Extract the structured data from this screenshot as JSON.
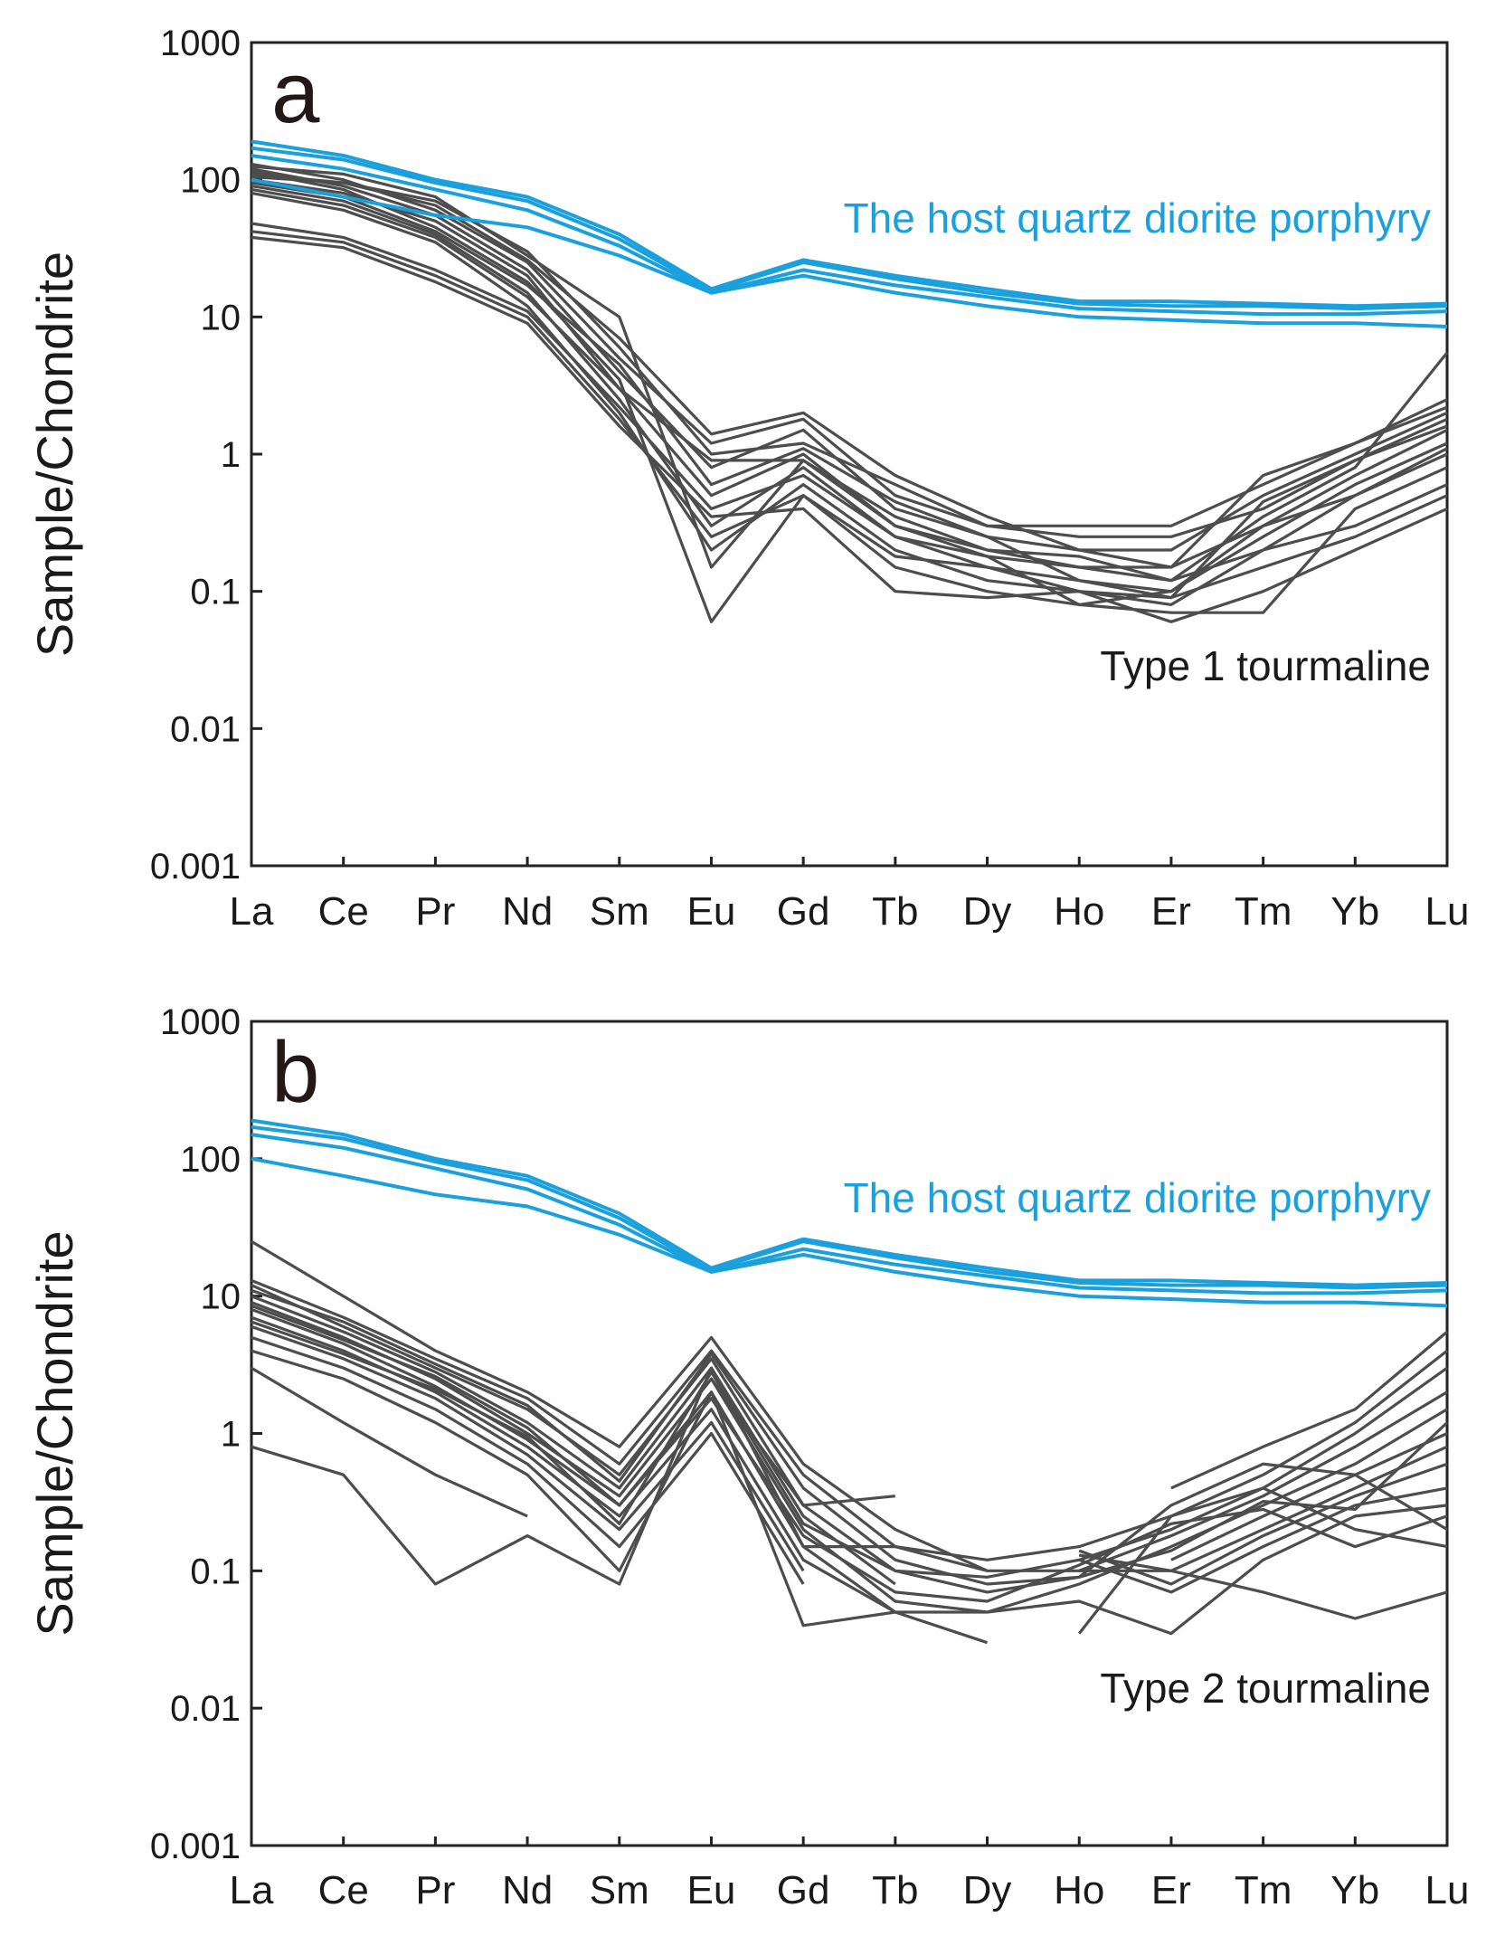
{
  "figure": {
    "colors": {
      "host": "#1aa0dc",
      "tourmaline": "#4d4d4d",
      "axis": "#222222",
      "background": "#ffffff"
    }
  },
  "chart_data": [
    {
      "type": "line",
      "panel": "a",
      "ylabel": "Sample/Chondrite",
      "yscale": "log",
      "ylim": [
        0.001,
        1000
      ],
      "yticks": [
        "1000",
        "100",
        "10",
        "1",
        "0.1",
        "0.01",
        "0.001"
      ],
      "categories": [
        "La",
        "Ce",
        "Pr",
        "Nd",
        "Sm",
        "Eu",
        "Gd",
        "Tb",
        "Dy",
        "Ho",
        "Er",
        "Tm",
        "Yb",
        "Lu"
      ],
      "annotations": {
        "host": "The host quartz diorite porphyry",
        "tourmaline": "Type 1 tourmaline"
      },
      "series": [
        {
          "name": "host-1",
          "group": "host",
          "values": [
            190,
            150,
            100,
            75,
            40,
            16,
            26,
            20,
            16,
            13,
            13,
            12.5,
            12,
            12.5
          ]
        },
        {
          "name": "host-2",
          "group": "host",
          "values": [
            170,
            140,
            95,
            70,
            37,
            15.5,
            25,
            19,
            15,
            12.5,
            12,
            12,
            11.5,
            12
          ]
        },
        {
          "name": "host-3",
          "group": "host",
          "values": [
            150,
            120,
            85,
            60,
            33,
            15,
            22,
            17,
            14,
            11.5,
            11,
            10.5,
            10.5,
            11
          ]
        },
        {
          "name": "host-4",
          "group": "host",
          "values": [
            100,
            75,
            55,
            45,
            28,
            15,
            20,
            15,
            12,
            10,
            9.5,
            9,
            9,
            8.5
          ]
        },
        {
          "name": "t1-1",
          "group": "tourmaline",
          "values": [
            130,
            100,
            60,
            25,
            5,
            1.2,
            1.8,
            0.5,
            0.3,
            0.3,
            0.3,
            0.6,
            1.2,
            2.5
          ]
        },
        {
          "name": "t1-2",
          "group": "tourmaline",
          "values": [
            120,
            90,
            55,
            22,
            4,
            0.8,
            1.5,
            0.4,
            0.25,
            0.2,
            0.2,
            0.5,
            1.0,
            2.0
          ]
        },
        {
          "name": "t1-3",
          "group": "tourmaline",
          "values": [
            110,
            95,
            70,
            30,
            6,
            1.0,
            1.2,
            0.6,
            0.3,
            0.25,
            0.25,
            0.4,
            0.9,
            1.8
          ]
        },
        {
          "name": "t1-4",
          "group": "tourmaline",
          "values": [
            100,
            80,
            50,
            20,
            3,
            0.5,
            1.0,
            0.3,
            0.2,
            0.15,
            0.15,
            0.3,
            0.7,
            1.5
          ]
        },
        {
          "name": "t1-5",
          "group": "tourmaline",
          "values": [
            90,
            70,
            40,
            15,
            2.5,
            0.3,
            0.8,
            0.25,
            0.15,
            0.12,
            0.1,
            0.25,
            0.6,
            1.2
          ]
        },
        {
          "name": "t1-6",
          "group": "tourmaline",
          "values": [
            80,
            60,
            35,
            12,
            2.0,
            0.2,
            0.6,
            0.2,
            0.12,
            0.1,
            0.08,
            0.2,
            0.5,
            1.0
          ]
        },
        {
          "name": "t1-7",
          "group": "tourmaline",
          "values": [
            125,
            110,
            75,
            28,
            10,
            0.15,
            0.9,
            0.35,
            0.2,
            0.18,
            0.12,
            0.35,
            0.8,
            5.5
          ]
        },
        {
          "name": "t1-8",
          "group": "tourmaline",
          "values": [
            115,
            85,
            45,
            18,
            3.5,
            0.06,
            0.5,
            0.15,
            0.1,
            0.08,
            0.07,
            0.07,
            0.4,
            0.8
          ]
        },
        {
          "name": "t1-9",
          "group": "tourmaline",
          "values": [
            48,
            38,
            22,
            11,
            2.2,
            0.4,
            0.7,
            0.25,
            0.18,
            0.15,
            0.12,
            0.2,
            0.3,
            0.6
          ]
        },
        {
          "name": "t1-10",
          "group": "tourmaline",
          "values": [
            42,
            35,
            20,
            10,
            1.8,
            0.25,
            0.5,
            0.18,
            0.15,
            0.1,
            0.09,
            0.15,
            0.25,
            0.5
          ]
        },
        {
          "name": "t1-11",
          "group": "tourmaline",
          "values": [
            38,
            32,
            18,
            9,
            1.6,
            0.35,
            0.4,
            0.1,
            0.09,
            0.1,
            0.06,
            0.1,
            0.2,
            0.4
          ]
        },
        {
          "name": "t1-12",
          "group": "tourmaline",
          "values": [
            105,
            95,
            65,
            26,
            7,
            1.4,
            2.0,
            0.7,
            0.35,
            0.2,
            0.15,
            0.7,
            1.2,
            2.2
          ]
        },
        {
          "name": "t1-13",
          "group": "tourmaline",
          "values": [
            95,
            75,
            42,
            17,
            4.5,
            0.6,
            1.1,
            0.45,
            0.25,
            0.12,
            0.09,
            0.45,
            0.9,
            1.6
          ]
        },
        {
          "name": "t1-14",
          "group": "tourmaline",
          "values": [
            85,
            65,
            38,
            14,
            3.0,
            0.9,
            0.9,
            0.3,
            0.18,
            0.08,
            0.1,
            0.3,
            0.5,
            1.1
          ]
        }
      ]
    },
    {
      "type": "line",
      "panel": "b",
      "ylabel": "Sample/Chondrite",
      "yscale": "log",
      "ylim": [
        0.001,
        1000
      ],
      "yticks": [
        "1000",
        "100",
        "10",
        "1",
        "0.1",
        "0.01",
        "0.001"
      ],
      "categories": [
        "La",
        "Ce",
        "Pr",
        "Nd",
        "Sm",
        "Eu",
        "Gd",
        "Tb",
        "Dy",
        "Ho",
        "Er",
        "Tm",
        "Yb",
        "Lu"
      ],
      "annotations": {
        "host": "The host quartz diorite porphyry",
        "tourmaline": "Type 2 tourmaline"
      },
      "series": [
        {
          "name": "host-1",
          "group": "host",
          "values": [
            190,
            150,
            100,
            75,
            40,
            16,
            26,
            20,
            16,
            13,
            13,
            12.5,
            12,
            12.5
          ]
        },
        {
          "name": "host-2",
          "group": "host",
          "values": [
            170,
            140,
            95,
            70,
            37,
            15.5,
            25,
            19,
            15,
            12.5,
            12,
            12,
            11.5,
            12
          ]
        },
        {
          "name": "host-3",
          "group": "host",
          "values": [
            150,
            120,
            85,
            60,
            33,
            15,
            22,
            17,
            14,
            11.5,
            11,
            10.5,
            10.5,
            11
          ]
        },
        {
          "name": "host-4",
          "group": "host",
          "values": [
            100,
            75,
            55,
            45,
            28,
            15,
            20,
            15,
            12,
            10,
            9.5,
            9,
            9,
            8.5
          ]
        },
        {
          "name": "t2-1",
          "group": "tourmaline",
          "values": [
            25,
            10,
            4,
            2.0,
            0.8,
            5.0,
            0.6,
            0.2,
            0.1,
            null,
            0.4,
            0.8,
            1.5,
            5.5
          ]
        },
        {
          "name": "t2-2",
          "group": "tourmaline",
          "values": [
            13,
            7,
            3.5,
            1.8,
            0.6,
            4.0,
            0.5,
            0.15,
            0.12,
            0.15,
            0.25,
            0.5,
            1.2,
            4.0
          ]
        },
        {
          "name": "t2-3",
          "group": "tourmaline",
          "values": [
            12,
            6,
            3,
            1.5,
            0.5,
            3.5,
            0.3,
            0.1,
            0.09,
            0.12,
            0.2,
            0.4,
            1.0,
            3.0
          ]
        },
        {
          "name": "t2-4",
          "group": "tourmaline",
          "values": [
            10,
            5.5,
            2.8,
            1.2,
            0.4,
            3.0,
            0.25,
            0.08,
            null,
            0.1,
            0.18,
            0.35,
            0.8,
            2.0
          ]
        },
        {
          "name": "t2-5",
          "group": "tourmaline",
          "values": [
            9,
            5,
            2.5,
            1.0,
            0.35,
            2.5,
            0.2,
            0.06,
            0.05,
            0.08,
            0.15,
            0.3,
            0.6,
            1.5
          ]
        },
        {
          "name": "t2-6",
          "group": "tourmaline",
          "values": [
            8,
            4.5,
            2.2,
            0.9,
            0.3,
            2.0,
            0.15,
            0.05,
            0.03,
            null,
            0.12,
            0.25,
            0.5,
            1.0
          ]
        },
        {
          "name": "t2-7",
          "group": "tourmaline",
          "values": [
            7,
            4,
            2.0,
            0.8,
            0.25,
            1.5,
            0.12,
            0.05,
            null,
            0.13,
            0.1,
            0.2,
            0.4,
            0.8
          ]
        },
        {
          "name": "t2-8",
          "group": "tourmaline",
          "values": [
            6,
            3.5,
            1.8,
            0.7,
            0.2,
            1.2,
            0.1,
            null,
            null,
            0.14,
            0.08,
            0.18,
            0.35,
            0.6
          ]
        },
        {
          "name": "t2-9",
          "group": "tourmaline",
          "values": [
            5,
            3,
            1.5,
            0.6,
            0.15,
            1.0,
            0.08,
            null,
            null,
            0.12,
            0.07,
            0.15,
            0.3,
            0.4
          ]
        },
        {
          "name": "t2-10",
          "group": "tourmaline",
          "values": [
            4,
            2.5,
            1.2,
            0.5,
            0.1,
            2.0,
            0.04,
            0.05,
            0.05,
            0.06,
            0.035,
            0.12,
            0.25,
            0.3
          ]
        },
        {
          "name": "t2-11",
          "group": "tourmaline",
          "values": [
            3,
            1.2,
            0.5,
            0.25,
            null,
            2.5,
            0.3,
            0.35,
            null,
            0.035,
            0.25,
            0.4,
            0.2,
            0.15
          ]
        },
        {
          "name": "t2-12",
          "group": "tourmaline",
          "values": [
            0.8,
            0.5,
            0.08,
            0.18,
            0.08,
            3.0,
            0.15,
            0.15,
            0.1,
            0.1,
            0.1,
            0.07,
            0.045,
            0.07
          ]
        },
        {
          "name": "t2-13",
          "group": "tourmaline",
          "values": [
            11,
            6.5,
            3.2,
            1.6,
            0.45,
            3.8,
            0.4,
            0.12,
            0.08,
            0.09,
            0.3,
            0.6,
            0.5,
            0.2
          ]
        },
        {
          "name": "t2-14",
          "group": "tourmaline",
          "values": [
            8.5,
            4.8,
            2.6,
            1.1,
            0.3,
            1.8,
            0.18,
            0.07,
            0.06,
            0.11,
            0.22,
            0.28,
            0.15,
            0.25
          ]
        },
        {
          "name": "t2-15",
          "group": "tourmaline",
          "values": [
            6.5,
            3.8,
            2.1,
            0.95,
            0.22,
            2.8,
            0.22,
            0.1,
            0.07,
            0.09,
            0.14,
            0.32,
            0.28,
            1.2
          ]
        }
      ]
    }
  ]
}
